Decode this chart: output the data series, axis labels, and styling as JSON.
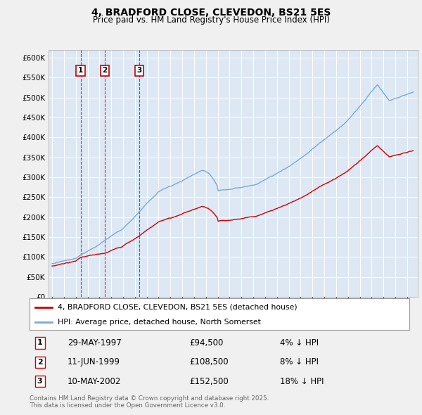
{
  "title": "4, BRADFORD CLOSE, CLEVEDON, BS21 5ES",
  "subtitle": "Price paid vs. HM Land Registry's House Price Index (HPI)",
  "ylim": [
    0,
    620000
  ],
  "yticks": [
    0,
    50000,
    100000,
    150000,
    200000,
    250000,
    300000,
    350000,
    400000,
    450000,
    500000,
    550000,
    600000
  ],
  "ytick_labels": [
    "£0",
    "£50K",
    "£100K",
    "£150K",
    "£200K",
    "£250K",
    "£300K",
    "£350K",
    "£400K",
    "£450K",
    "£500K",
    "£550K",
    "£600K"
  ],
  "sales": [
    {
      "num": 1,
      "date": "29-MAY-1997",
      "price": 94500,
      "year": 1997.41,
      "pct": "4%",
      "dir": "↓"
    },
    {
      "num": 2,
      "date": "11-JUN-1999",
      "price": 108500,
      "year": 1999.44,
      "pct": "8%",
      "dir": "↓"
    },
    {
      "num": 3,
      "date": "10-MAY-2002",
      "price": 152500,
      "year": 2002.36,
      "pct": "18%",
      "dir": "↓"
    }
  ],
  "legend_property": "4, BRADFORD CLOSE, CLEVEDON, BS21 5ES (detached house)",
  "legend_hpi": "HPI: Average price, detached house, North Somerset",
  "footer": "Contains HM Land Registry data © Crown copyright and database right 2025.\nThis data is licensed under the Open Government Licence v3.0.",
  "property_color": "#cc0000",
  "hpi_color": "#7aaad0",
  "vline_color": "#cc0000",
  "plot_bg_color": "#dde8f4",
  "fig_bg_color": "#f0f0f0"
}
